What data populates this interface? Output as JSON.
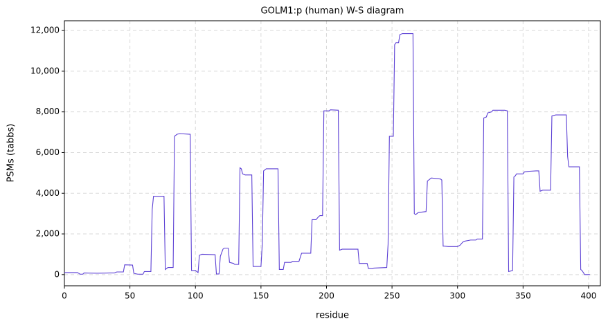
{
  "chart_data": {
    "type": "line",
    "title": "GOLM1:p (human) W-S diagram",
    "xlabel": "residue",
    "ylabel": "PSMs (tabbs)",
    "x": [
      0,
      10,
      12,
      14,
      15,
      25,
      35,
      38,
      40,
      45,
      46,
      52,
      53,
      56,
      60,
      61,
      66,
      67,
      68,
      76,
      77,
      79,
      83,
      84,
      86,
      88,
      96,
      97,
      100,
      102,
      103,
      105,
      115,
      116,
      118,
      119,
      121,
      122,
      125,
      126,
      129,
      130,
      133,
      134,
      135,
      136,
      138,
      143,
      144,
      150,
      151,
      152,
      154,
      163,
      164,
      167,
      168,
      173,
      174,
      179,
      181,
      188,
      189,
      192,
      194,
      195,
      197,
      198,
      202,
      203,
      209,
      210,
      212,
      224,
      225,
      231,
      232,
      235,
      236,
      246,
      247,
      248,
      251,
      252,
      253,
      255,
      256,
      258,
      266,
      267,
      268,
      270,
      276,
      277,
      279,
      280,
      287,
      288,
      289,
      290,
      293,
      300,
      302,
      304,
      306,
      310,
      314,
      315,
      319,
      320,
      322,
      323,
      326,
      327,
      336,
      338,
      339,
      342,
      343,
      344,
      345,
      350,
      351,
      355,
      360,
      362,
      363,
      365,
      371,
      372,
      375,
      383,
      384,
      385,
      387,
      393,
      394,
      395,
      397,
      401
    ],
    "series": [
      {
        "name": "PSMs",
        "color": "#5b3fd4",
        "values": [
          100,
          100,
          20,
          20,
          80,
          70,
          80,
          80,
          130,
          130,
          480,
          470,
          60,
          20,
          20,
          150,
          150,
          3200,
          3850,
          3850,
          250,
          350,
          350,
          6800,
          6900,
          6930,
          6900,
          200,
          200,
          100,
          950,
          1000,
          980,
          30,
          30,
          900,
          1250,
          1300,
          1300,
          600,
          550,
          500,
          500,
          5250,
          5200,
          4950,
          4900,
          4900,
          400,
          400,
          1500,
          5100,
          5200,
          5200,
          250,
          250,
          600,
          600,
          650,
          650,
          1050,
          1050,
          2700,
          2700,
          2850,
          2900,
          2900,
          8050,
          8050,
          8100,
          8080,
          1200,
          1250,
          1250,
          550,
          550,
          300,
          300,
          320,
          350,
          1500,
          6800,
          6800,
          11300,
          11400,
          11400,
          11800,
          11850,
          11850,
          3000,
          2950,
          3050,
          3100,
          4600,
          4700,
          4750,
          4700,
          4650,
          1400,
          1400,
          1380,
          1380,
          1450,
          1600,
          1650,
          1700,
          1700,
          1750,
          1750,
          7700,
          7750,
          7950,
          8000,
          8080,
          8080,
          8050,
          150,
          200,
          4800,
          4850,
          4950,
          4950,
          5050,
          5080,
          5100,
          5100,
          4100,
          4150,
          4150,
          7800,
          7850,
          7850,
          5800,
          5300,
          5300,
          5300,
          250,
          200,
          0,
          0
        ]
      }
    ],
    "xlim": [
      0,
      409
    ],
    "xticks": [
      0,
      50,
      100,
      150,
      200,
      250,
      300,
      350,
      400
    ],
    "ylim": [
      -550,
      12480
    ],
    "yticks": [
      0,
      {
        "value": 2000,
        "label": "2,000"
      },
      {
        "value": 4000,
        "label": "4,000"
      },
      {
        "value": 6000,
        "label": "6,000"
      },
      {
        "value": 8000,
        "label": "8,000"
      },
      {
        "value": 10000,
        "label": "10,000"
      },
      {
        "value": 12000,
        "label": "12,000"
      }
    ],
    "grid": true
  }
}
